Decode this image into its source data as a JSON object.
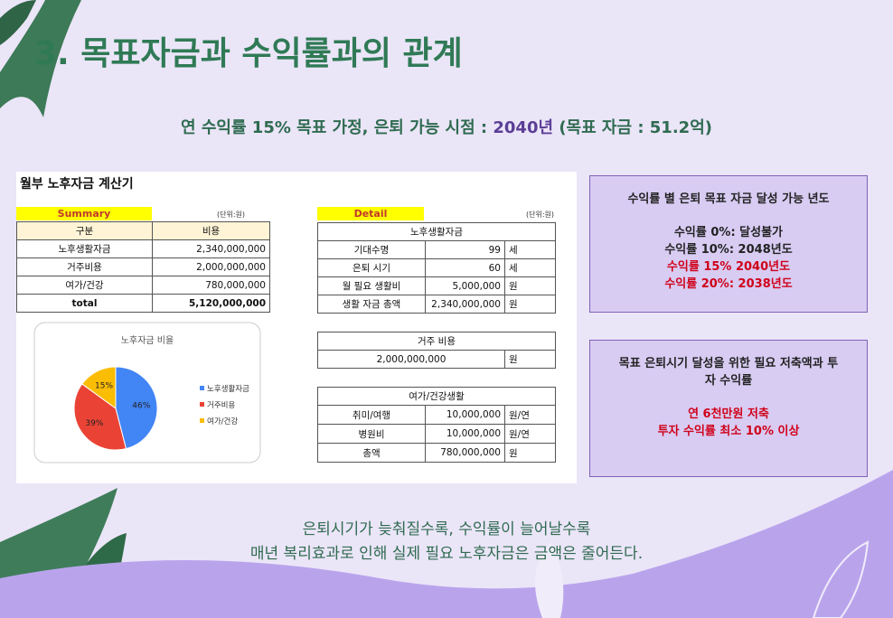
{
  "title": "3. 목표자금과 수익률과의 관계",
  "subtitle": {
    "prefix": "연 수익률 15% 목표 가정, 은퇴 가능 시점 : ",
    "highlight": "2040년",
    "suffix": " (목표 자금 : 51.2억)"
  },
  "calculator": {
    "title": "월부 노후자금 계산기",
    "summary": {
      "label": "Summary",
      "unit": "(단위:원)",
      "header": [
        "구분",
        "비용"
      ],
      "rows": [
        [
          "노후생활자금",
          "2,340,000,000"
        ],
        [
          "거주비용",
          "2,000,000,000"
        ],
        [
          "여가/건강",
          "780,000,000"
        ],
        [
          "total",
          "5,120,000,000"
        ]
      ]
    },
    "detail": {
      "label": "Detail",
      "unit": "(단위:원)",
      "living": {
        "header": "노후생활자금",
        "rows": [
          [
            "기대수명",
            "99",
            "세"
          ],
          [
            "은퇴 시기",
            "60",
            "세"
          ],
          [
            "월 필요 생활비",
            "5,000,000",
            "원"
          ],
          [
            "생활 자금 총액",
            "2,340,000,000",
            "원"
          ]
        ]
      },
      "housing": {
        "header": "거주 비용",
        "rows": [
          [
            "2,000,000,000",
            "원"
          ]
        ]
      },
      "leisure": {
        "header": "여가/건강생활",
        "rows": [
          [
            "취미/여행",
            "10,000,000",
            "원/연"
          ],
          [
            "병원비",
            "10,000,000",
            "원/연"
          ],
          [
            "총액",
            "780,000,000",
            "원"
          ]
        ]
      }
    }
  },
  "chart_data": {
    "type": "pie",
    "title": "노후자금 비율",
    "categories": [
      "노후생활자금",
      "거주비용",
      "여가/건강"
    ],
    "values": [
      46,
      39,
      15
    ],
    "value_labels": [
      "46%",
      "39%",
      "15%"
    ],
    "colors": [
      "#4285f4",
      "#ea4335",
      "#fbbc04"
    ]
  },
  "boxes": [
    {
      "title": "수익률 별 은퇴 목표 자금 달성 가능 년도",
      "lines": [
        {
          "text": "수익률 0%: 달성불가",
          "color": "#222222"
        },
        {
          "text": "수익률 10%: 2048년도",
          "color": "#222222"
        },
        {
          "text": "수익률 15% 2040년도",
          "color": "#d0021b"
        },
        {
          "text": "수익률 20%: 2038년도",
          "color": "#d0021b"
        }
      ]
    },
    {
      "title": "목표 은퇴시기 달성을 위한 필요 저축액과 투자 수익률",
      "lines": [
        {
          "text": "연 6천만원 저축",
          "color": "#d0021b"
        },
        {
          "text": "투자 수익률 최소 10% 이상",
          "color": "#d0021b"
        }
      ]
    }
  ],
  "footer": [
    "은퇴시기가 늦춰질수록, 수익률이 늘어날수록",
    "매년 복리효과로 인해 실제 필요 노후자금은 금액은 줄어든다."
  ]
}
